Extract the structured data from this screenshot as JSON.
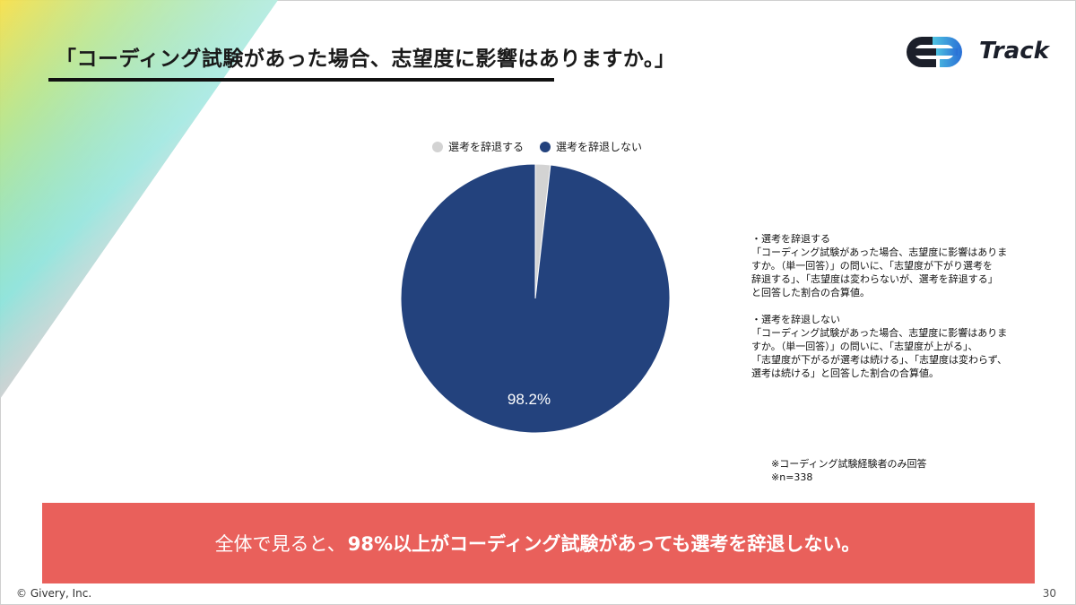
{
  "slide": {
    "title": "「コーディング試験があった場合、志望度に影響はありますか。」",
    "logo_text": "Track",
    "page_number": "30",
    "copyright": "© Givery, Inc."
  },
  "legend": {
    "items": [
      {
        "label": "選考を辞退する",
        "color": "#d3d3d3"
      },
      {
        "label": "選考を辞退しない",
        "color": "#23427d"
      }
    ]
  },
  "chart_data": {
    "type": "pie",
    "categories": [
      "選考を辞退する",
      "選考を辞退しない"
    ],
    "values": [
      1.8,
      98.2
    ],
    "colors": [
      "#d3d3d3",
      "#23427d"
    ],
    "data_labels": [
      "",
      "98.2%"
    ],
    "legend_position": "top"
  },
  "notes": {
    "decline": {
      "heading": "・選考を辞退する",
      "lines": [
        "「コーディング試験があった場合、志望度に影響はありま",
        "すか。（単一回答）」の問いに、「志望度が下がり選考を",
        "辞退する」、「志望度は変わらないが、選考を辞退する」",
        "と回答した割合の合算値。"
      ]
    },
    "not_decline": {
      "heading": "・選考を辞退しない",
      "lines": [
        "「コーディング試験があった場合、志望度に影響はありま",
        "すか。（単一回答）」の問いに、「志望度が上がる」、",
        "「志望度が下がるが選考は続ける」、「志望度は変わらず、",
        "選考は続ける」と回答した割合の合算値。"
      ]
    }
  },
  "footnote": {
    "line1": "※コーディング試験経験者のみ回答",
    "line2": "※n=338"
  },
  "banner": {
    "prefix": "全体で見ると、",
    "highlight": "98%以上がコーディング試験があっても選考を辞退しない。"
  }
}
